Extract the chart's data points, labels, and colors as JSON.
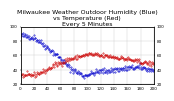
{
  "title": "Milwaukee Weather Outdoor Humidity (Blue)\nvs Temperature (Red)\nEvery 5 Minutes",
  "title_fontsize": 4.5,
  "background_color": "#ffffff",
  "grid_color": "#cccccc",
  "blue_color": "#0000cc",
  "red_color": "#cc0000",
  "n_points": 200
}
